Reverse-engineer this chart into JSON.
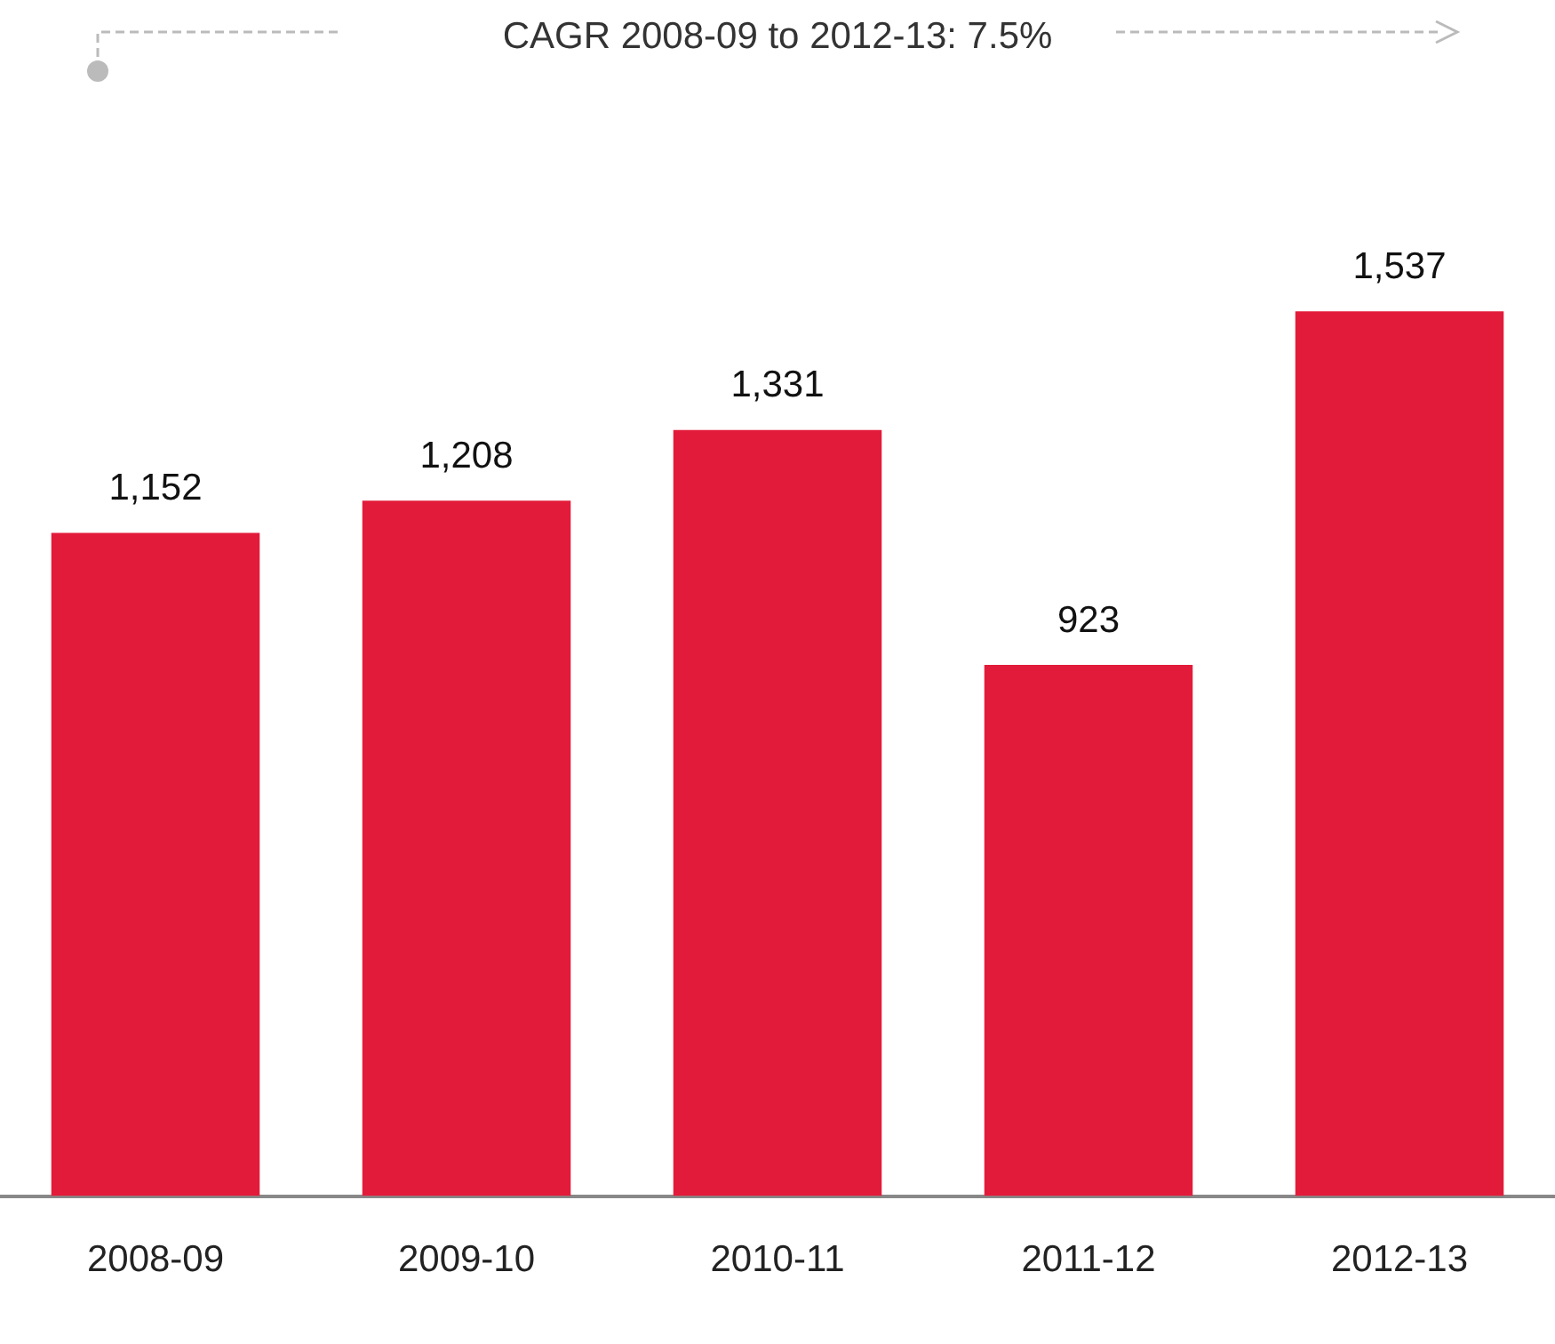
{
  "chart_data": {
    "type": "bar",
    "categories": [
      "2008-09",
      "2009-10",
      "2010-11",
      "2011-12",
      "2012-13"
    ],
    "values": [
      1152,
      1208,
      1331,
      923,
      1537
    ],
    "value_labels": [
      "1,152",
      "1,208",
      "1,331",
      "923",
      "1,537"
    ],
    "color": "#e31b3a",
    "grid": false,
    "legend": false,
    "annotations": [
      "CAGR 2008-09 to 2012-13: 7.5%"
    ]
  }
}
